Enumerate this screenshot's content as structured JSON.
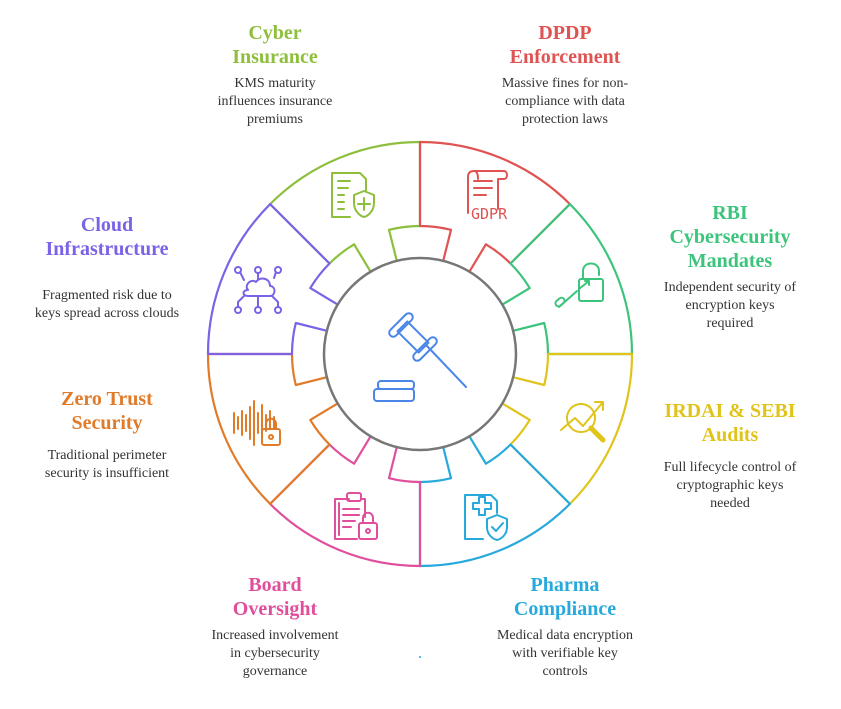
{
  "center": {
    "icon": "gavel-icon",
    "color": "#4a86e8",
    "ring_color": "#777777"
  },
  "segments": [
    {
      "id": "cyber-insurance",
      "title": "Cyber\nInsurance",
      "desc": "KMS maturity\ninfluences insurance\npremiums",
      "color": "#8dbf3c",
      "icon": "document-shield-plus-icon"
    },
    {
      "id": "dpdp-enforcement",
      "title": "DPDP\nEnforcement",
      "desc": "Massive fines for non-\ncompliance with data\nprotection laws",
      "color": "#e05353",
      "icon": "gdpr-scroll-icon",
      "icon_text": "GDPR"
    },
    {
      "id": "rbi-mandates",
      "title": "RBI\nCybersecurity\nMandates",
      "desc": "Independent security of\nencryption keys\nrequired",
      "color": "#3cc47c",
      "icon": "unlocked-padlock-key-icon"
    },
    {
      "id": "irdai-sebi-audits",
      "title": "IRDAI & SEBI\nAudits",
      "desc": "Full lifecycle control of\ncryptographic keys\nneeded",
      "color": "#e0c419",
      "icon": "magnifier-trend-icon"
    },
    {
      "id": "pharma-compliance",
      "title": "Pharma\nCompliance",
      "desc": "Medical data encryption\nwith verifiable key\ncontrols",
      "color": "#27a9dc",
      "icon": "medical-document-shield-icon"
    },
    {
      "id": "board-oversight",
      "title": "Board\nOversight",
      "desc": "Increased involvement\nin cybersecurity\ngovernance",
      "color": "#df4f9c",
      "icon": "clipboard-lock-icon"
    },
    {
      "id": "zero-trust",
      "title": "Zero Trust\nSecurity",
      "desc": "Traditional perimeter\nsecurity is insufficient",
      "color": "#e07b2a",
      "icon": "soundwave-lock-icon"
    },
    {
      "id": "cloud-infrastructure",
      "title": "Cloud\nInfrastructure",
      "desc": "Fragmented risk due to\nkeys spread across clouds",
      "color": "#7b62e6",
      "icon": "cloud-network-icon"
    }
  ]
}
